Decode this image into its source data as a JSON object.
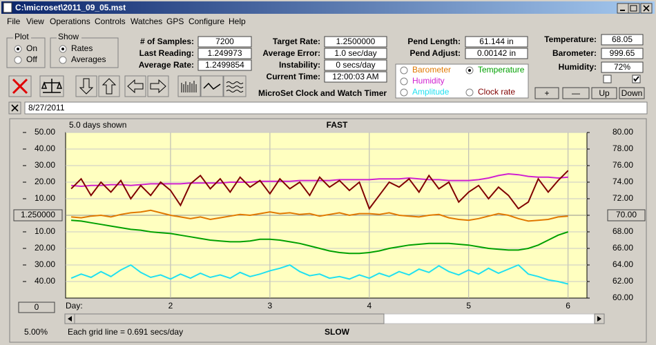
{
  "window": {
    "title": "C:\\microset\\2011_09_05.mst"
  },
  "menu": [
    "File",
    "View",
    "Operations",
    "Controls",
    "Watches",
    "GPS",
    "Configure",
    "Help"
  ],
  "plot": {
    "title": "Plot",
    "options": [
      "On",
      "Off"
    ],
    "selected": 0
  },
  "show": {
    "title": "Show",
    "options": [
      "Rates",
      "Averages"
    ],
    "selected": 0
  },
  "fields": [
    {
      "label": "# of Samples:",
      "value": "7200"
    },
    {
      "label": "Last Reading:",
      "value": "1.249973"
    },
    {
      "label": "Average Rate:",
      "value": "1.2499854"
    },
    {
      "label": "Target Rate:",
      "value": "1.2500000"
    },
    {
      "label": "Average Error:",
      "value": "1.0 sec/day"
    },
    {
      "label": "Instability:",
      "value": "0 secs/day"
    },
    {
      "label": "Current Time:",
      "value": "12:00:03 AM"
    },
    {
      "label": "Pend Length:",
      "value": "61.144 in"
    },
    {
      "label": "Pend Adjust:",
      "value": "0.00142 in"
    },
    {
      "label": "Temperature:",
      "value": "68.05"
    },
    {
      "label": "Barometer:",
      "value": "999.65"
    },
    {
      "label": "Humidity:",
      "value": "72%"
    }
  ],
  "app_name": "MicroSet Clock and Watch Timer",
  "checkboxes": [
    false,
    true
  ],
  "buttons": [
    "+",
    "—",
    "Up",
    "Down"
  ],
  "date": "8/27/2011",
  "chart_data": {
    "type": "line",
    "days_shown": "5.0 days shown",
    "top_label": "FAST",
    "bottom_label": "SLOW",
    "x_label": "Day:",
    "footer": "Each grid line = 0.691 secs/day",
    "percent": "5.00%",
    "zero_button": "0",
    "grid": true,
    "x": [
      1,
      1.1,
      1.2,
      1.3,
      1.4,
      1.5,
      1.6,
      1.7,
      1.8,
      1.9,
      2,
      2.1,
      2.2,
      2.3,
      2.4,
      2.5,
      2.6,
      2.7,
      2.8,
      2.9,
      3,
      3.1,
      3.2,
      3.3,
      3.4,
      3.5,
      3.6,
      3.7,
      3.8,
      3.9,
      4,
      4.1,
      4.2,
      4.3,
      4.4,
      4.5,
      4.6,
      4.7,
      4.8,
      4.9,
      5,
      5.1,
      5.2,
      5.3,
      5.4,
      5.5,
      5.6,
      5.7,
      5.8,
      5.9,
      6
    ],
    "xlim": [
      0.944,
      6.19
    ],
    "xticks": [
      2,
      3,
      4,
      5,
      6
    ],
    "ylim": [
      -50,
      50
    ],
    "yticks": [
      {
        "value": 50,
        "label": "50.00"
      },
      {
        "value": 40,
        "label": "40.00"
      },
      {
        "value": 30,
        "label": "30.00"
      },
      {
        "value": 20,
        "label": "20.00"
      },
      {
        "value": 10,
        "label": "10.00"
      },
      {
        "value": -10,
        "label": "10.00"
      },
      {
        "value": -20,
        "label": "20.00"
      },
      {
        "value": -30,
        "label": "30.00"
      },
      {
        "value": -40,
        "label": "40.00"
      }
    ],
    "ycenter": {
      "value": 0,
      "label": "1.250000"
    },
    "y2lim": [
      60,
      80
    ],
    "y2ticks": [
      {
        "value": 80,
        "label": "80.00"
      },
      {
        "value": 78,
        "label": "78.00"
      },
      {
        "value": 76,
        "label": "76.00"
      },
      {
        "value": 74,
        "label": "74.00"
      },
      {
        "value": 72,
        "label": "72.00"
      },
      {
        "value": 68,
        "label": "68.00"
      },
      {
        "value": 66,
        "label": "66.00"
      },
      {
        "value": 64,
        "label": "64.00"
      },
      {
        "value": 62,
        "label": "62.00"
      },
      {
        "value": 60,
        "label": "60.00"
      }
    ],
    "y2center": {
      "value": 70,
      "label": "70.00"
    },
    "selected_series": 1,
    "series": [
      {
        "name": "Barometer",
        "color": "#e07800",
        "axis": "y2",
        "values": [
          69.8,
          69.7,
          69.9,
          70.0,
          69.8,
          70.1,
          70.3,
          70.4,
          70.6,
          70.3,
          70.0,
          69.8,
          69.6,
          69.8,
          69.5,
          69.7,
          69.9,
          70.1,
          70.0,
          70.2,
          70.4,
          70.2,
          70.3,
          70.1,
          70.2,
          69.9,
          70.1,
          70.3,
          70.0,
          70.2,
          70.2,
          70.1,
          70.3,
          70.0,
          69.9,
          69.8,
          70.0,
          70.1,
          69.7,
          69.5,
          69.4,
          69.6,
          69.9,
          70.2,
          70.0,
          69.6,
          69.3,
          69.4,
          69.5,
          69.8,
          69.9
        ]
      },
      {
        "name": "Temperature",
        "color": "#00a000",
        "axis": "y2",
        "values": [
          69.4,
          69.3,
          69.1,
          68.9,
          68.7,
          68.5,
          68.3,
          68.2,
          68.0,
          67.9,
          67.8,
          67.6,
          67.4,
          67.2,
          67.0,
          66.9,
          66.8,
          66.8,
          66.9,
          67.1,
          67.1,
          67.0,
          66.8,
          66.6,
          66.3,
          66.0,
          65.7,
          65.5,
          65.4,
          65.4,
          65.5,
          65.7,
          66.0,
          66.2,
          66.4,
          66.5,
          66.6,
          66.6,
          66.6,
          66.5,
          66.4,
          66.2,
          66.0,
          65.9,
          65.8,
          65.8,
          66.0,
          66.4,
          67.0,
          67.6,
          68.0
        ]
      },
      {
        "name": "Humidity",
        "color": "#d020d0",
        "axis": "y2",
        "values": [
          73.6,
          73.5,
          73.6,
          73.6,
          73.7,
          73.7,
          73.6,
          73.7,
          73.8,
          73.8,
          73.8,
          73.8,
          73.9,
          73.9,
          73.9,
          73.9,
          74.0,
          74.0,
          74.0,
          74.1,
          74.1,
          74.1,
          74.1,
          74.2,
          74.2,
          74.2,
          74.2,
          74.3,
          74.3,
          74.3,
          74.3,
          74.4,
          74.4,
          74.4,
          74.5,
          74.4,
          74.3,
          74.3,
          74.2,
          74.2,
          74.2,
          74.3,
          74.5,
          74.8,
          75.0,
          74.9,
          74.7,
          74.6,
          74.6,
          74.5,
          74.6
        ]
      },
      {
        "name": "Amplitude",
        "color": "#20e0f0",
        "axis": "y2",
        "values": [
          62.4,
          62.9,
          62.5,
          63.2,
          62.6,
          63.4,
          64.0,
          63.1,
          62.5,
          62.8,
          62.3,
          62.9,
          62.4,
          63.0,
          62.5,
          62.8,
          62.4,
          63.1,
          62.6,
          62.9,
          63.3,
          63.6,
          64.0,
          63.2,
          62.7,
          62.9,
          62.4,
          62.6,
          62.3,
          62.8,
          62.4,
          63.0,
          62.6,
          63.2,
          62.8,
          63.5,
          63.1,
          63.9,
          63.2,
          62.8,
          63.4,
          62.9,
          63.6,
          63.0,
          63.5,
          64.0,
          62.9,
          62.6,
          62.2,
          62.0,
          61.7
        ]
      },
      {
        "name": "Clock rate",
        "color": "#800000",
        "values": [
          16,
          22,
          12,
          20,
          14,
          21,
          10,
          18,
          12,
          20,
          15,
          6,
          19,
          24,
          16,
          22,
          14,
          23,
          17,
          21,
          13,
          22,
          16,
          20,
          12,
          23,
          17,
          21,
          15,
          20,
          4,
          12,
          20,
          17,
          22,
          14,
          24,
          16,
          20,
          8,
          14,
          18,
          10,
          17,
          12,
          4,
          8,
          22,
          14,
          21,
          27
        ]
      }
    ]
  }
}
